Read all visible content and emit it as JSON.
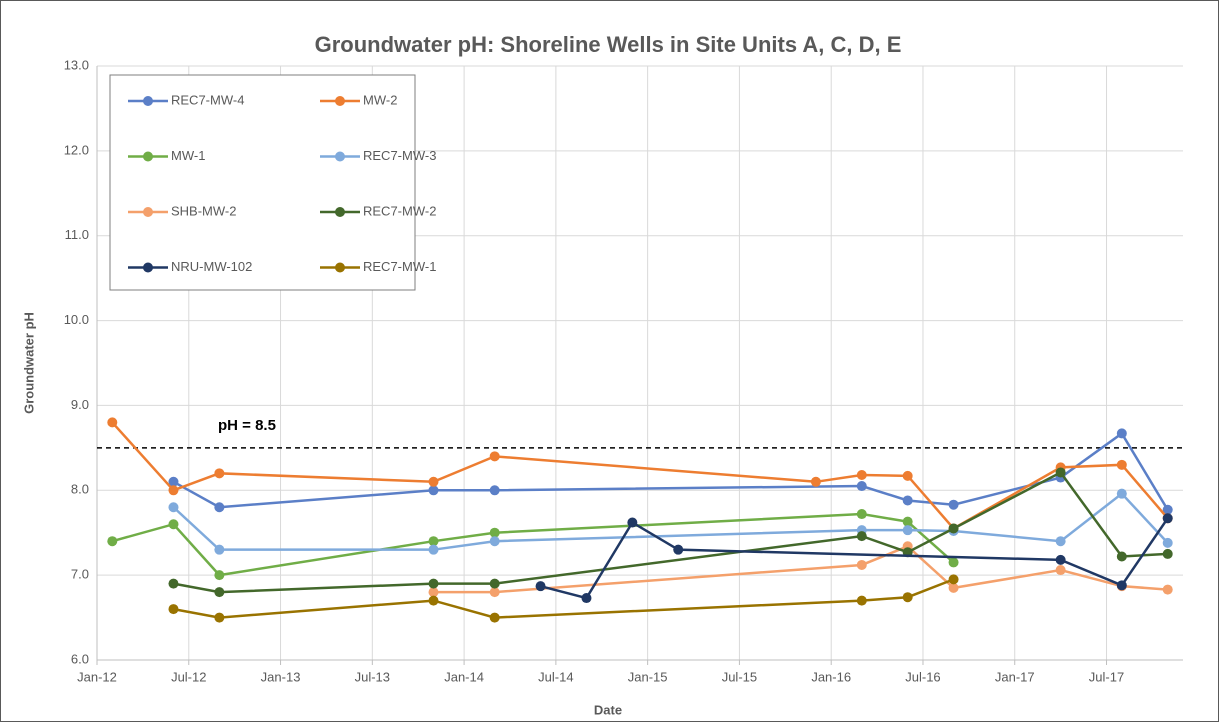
{
  "chart_data": {
    "type": "line",
    "title": "Groundwater pH: Shoreline Wells in Site Units A, C, D, E",
    "x_label": "Date",
    "y_label": "Groundwater pH",
    "xlim": [
      "2012-01",
      "2017-12"
    ],
    "xticks": [
      {
        "value": "2012-01",
        "label": "Jan-12"
      },
      {
        "value": "2012-07",
        "label": "Jul-12"
      },
      {
        "value": "2013-01",
        "label": "Jan-13"
      },
      {
        "value": "2013-07",
        "label": "Jul-13"
      },
      {
        "value": "2014-01",
        "label": "Jan-14"
      },
      {
        "value": "2014-07",
        "label": "Jul-14"
      },
      {
        "value": "2015-01",
        "label": "Jan-15"
      },
      {
        "value": "2015-07",
        "label": "Jul-15"
      },
      {
        "value": "2016-01",
        "label": "Jan-16"
      },
      {
        "value": "2016-07",
        "label": "Jul-16"
      },
      {
        "value": "2017-01",
        "label": "Jan-17"
      },
      {
        "value": "2017-07",
        "label": "Jul-17"
      }
    ],
    "ylim": [
      6,
      13
    ],
    "yticks": [
      {
        "value": 6,
        "label": "6.0"
      },
      {
        "value": 7,
        "label": "7.0"
      },
      {
        "value": 8,
        "label": "8.0"
      },
      {
        "value": 9,
        "label": "9.0"
      },
      {
        "value": 10,
        "label": "10.0"
      },
      {
        "value": 11,
        "label": "11.0"
      },
      {
        "value": 12,
        "label": "12.0"
      },
      {
        "value": 13,
        "label": "13.0"
      }
    ],
    "grid": true,
    "legend": "top-left",
    "reference_line": {
      "value": 8.5,
      "label": "pH = 8.5"
    },
    "series": [
      {
        "name": "REC7-MW-4",
        "color": "#5b7fc7",
        "x": [
          "2012-06",
          "2012-09",
          "2013-11",
          "2014-03",
          "2016-03",
          "2016-06",
          "2016-09",
          "2017-04",
          "2017-08",
          "2017-11"
        ],
        "values": [
          8.1,
          7.8,
          8.0,
          8.0,
          8.05,
          7.88,
          7.83,
          8.15,
          8.67,
          7.77
        ]
      },
      {
        "name": "MW-2",
        "color": "#ed7d31",
        "x": [
          "2012-02",
          "2012-06",
          "2012-09",
          "2013-11",
          "2014-03",
          "2015-12",
          "2016-03",
          "2016-06",
          "2016-09",
          "2017-04",
          "2017-08",
          "2017-11"
        ],
        "values": [
          8.8,
          8.0,
          8.2,
          8.1,
          8.4,
          8.1,
          8.18,
          8.17,
          7.55,
          8.27,
          8.3,
          7.67
        ]
      },
      {
        "name": "MW-1",
        "color": "#70ad47",
        "x": [
          "2012-02",
          "2012-06",
          "2012-09",
          "2013-11",
          "2014-03",
          "2016-03",
          "2016-06",
          "2016-09"
        ],
        "values": [
          7.4,
          7.6,
          7.0,
          7.4,
          7.5,
          7.72,
          7.63,
          7.15
        ]
      },
      {
        "name": "REC7-MW-3",
        "color": "#7faadc",
        "x": [
          "2012-06",
          "2012-09",
          "2013-11",
          "2014-03",
          "2016-03",
          "2016-06",
          "2016-09",
          "2017-04",
          "2017-08",
          "2017-11"
        ],
        "values": [
          7.8,
          7.3,
          7.3,
          7.4,
          7.53,
          7.53,
          7.52,
          7.4,
          7.96,
          7.38
        ]
      },
      {
        "name": "SHB-MW-2",
        "color": "#f4a06b",
        "x": [
          "2013-11",
          "2014-03",
          "2016-03",
          "2016-06",
          "2016-09",
          "2017-04",
          "2017-08",
          "2017-11"
        ],
        "values": [
          6.8,
          6.8,
          7.12,
          7.34,
          6.85,
          7.06,
          6.87,
          6.83
        ]
      },
      {
        "name": "REC7-MW-2",
        "color": "#43682b",
        "x": [
          "2012-06",
          "2012-09",
          "2013-11",
          "2014-03",
          "2016-03",
          "2016-06",
          "2016-09",
          "2017-04",
          "2017-08",
          "2017-11"
        ],
        "values": [
          6.9,
          6.8,
          6.9,
          6.9,
          7.46,
          7.27,
          7.55,
          8.21,
          7.22,
          7.25
        ]
      },
      {
        "name": "NRU-MW-102",
        "color": "#203864",
        "x": [
          "2014-06",
          "2014-09",
          "2014-12",
          "2015-03",
          "2017-04",
          "2017-08",
          "2017-11"
        ],
        "values": [
          6.87,
          6.73,
          7.62,
          7.3,
          7.18,
          6.88,
          7.67
        ]
      },
      {
        "name": "REC7-MW-1",
        "color": "#997300",
        "x": [
          "2012-06",
          "2012-09",
          "2013-11",
          "2014-03",
          "2016-03",
          "2016-06",
          "2016-09"
        ],
        "values": [
          6.6,
          6.5,
          6.7,
          6.5,
          6.7,
          6.74,
          6.95
        ]
      }
    ]
  }
}
